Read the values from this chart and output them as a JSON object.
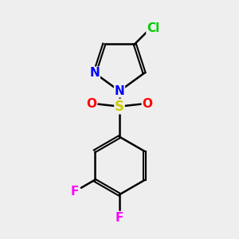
{
  "background_color": "#eeeeee",
  "bond_color": "#000000",
  "atom_colors": {
    "Cl": "#00cc00",
    "N": "#0000ff",
    "S": "#cccc00",
    "O": "#ff0000",
    "F": "#ff00ff"
  },
  "figsize": [
    3.0,
    3.0
  ],
  "dpi": 100
}
